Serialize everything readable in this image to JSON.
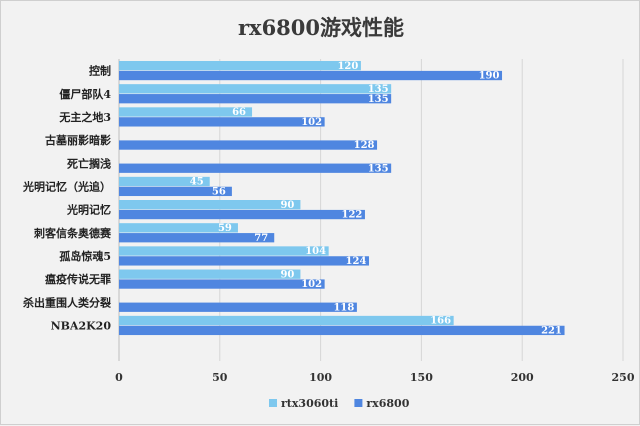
{
  "chart_data": {
    "type": "bar",
    "orientation": "horizontal",
    "title": "rx6800游戏性能",
    "categories": [
      "控制",
      "僵尸部队4",
      "无主之地3",
      "古墓丽影暗影",
      "死亡搁浅",
      "光明记忆（光追）",
      "光明记忆",
      "刺客信条奥德赛",
      "孤岛惊魂5",
      "瘟疫传说无罪",
      "杀出重围人类分裂",
      "NBA2K20"
    ],
    "series": [
      {
        "name": "rtx3060ti",
        "color": "#7ec8ee",
        "values": [
          120,
          135,
          66,
          null,
          null,
          45,
          90,
          59,
          104,
          90,
          null,
          166
        ]
      },
      {
        "name": "rx6800",
        "color": "#4f86e0",
        "values": [
          190,
          135,
          102,
          128,
          135,
          56,
          122,
          77,
          124,
          102,
          118,
          221
        ]
      }
    ],
    "xlim": [
      0,
      250
    ],
    "xticks": [
      0,
      50,
      100,
      150,
      200,
      250
    ],
    "xlabel": "",
    "ylabel": "",
    "grid": true,
    "legend_position": "bottom"
  }
}
